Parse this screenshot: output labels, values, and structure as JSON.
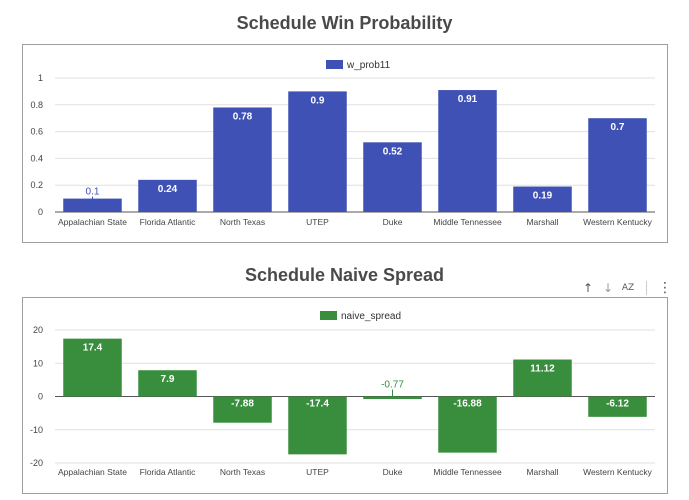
{
  "chart_data": [
    {
      "type": "bar",
      "title": "Schedule Win Probability",
      "categories": [
        "Appalachian State",
        "Florida Atlantic",
        "North Texas",
        "UTEP",
        "Duke",
        "Middle Tennessee",
        "Marshall",
        "Western Kentucky"
      ],
      "series": [
        {
          "name": "w_prob11",
          "values": [
            0.1,
            0.24,
            0.78,
            0.9,
            0.52,
            0.91,
            0.19,
            0.7
          ],
          "color": "#3f51b5"
        }
      ],
      "value_labels": [
        "0.1",
        "0.24",
        "0.78",
        "0.9",
        "0.52",
        "0.91",
        "0.19",
        "0.7"
      ],
      "ylim": [
        0,
        1
      ],
      "yticks": [
        0,
        0.2,
        0.4,
        0.6,
        0.8,
        1
      ],
      "ytick_labels": [
        "0",
        "0.2",
        "0.4",
        "0.6",
        "0.8",
        "1"
      ],
      "grid": true,
      "legend": "top"
    },
    {
      "type": "bar",
      "title": "Schedule Naive Spread",
      "categories": [
        "Appalachian State",
        "Florida Atlantic",
        "North Texas",
        "UTEP",
        "Duke",
        "Middle Tennessee",
        "Marshall",
        "Western Kentucky"
      ],
      "series": [
        {
          "name": "naive_spread",
          "values": [
            17.4,
            7.9,
            -7.88,
            -17.4,
            -0.77,
            -16.88,
            11.12,
            -6.12
          ],
          "color": "#388e3c"
        }
      ],
      "value_labels": [
        "17.4",
        "7.9",
        "-7.88",
        "-17.4",
        "-0.77",
        "-16.88",
        "11.12",
        "-6.12"
      ],
      "ylim": [
        -20,
        20
      ],
      "yticks": [
        -20,
        -10,
        0,
        10,
        20
      ],
      "ytick_labels": [
        "-20",
        "-10",
        "0",
        "10",
        "20"
      ],
      "grid": true,
      "legend": "top"
    }
  ],
  "toolbar": {
    "icons": [
      "arrow-up-icon",
      "arrow-down-icon",
      "sort-az-icon",
      "more-vert-icon"
    ],
    "glyphs": {
      "up": "↑",
      "down": "↓",
      "az": "AZ",
      "more": "⋮"
    }
  }
}
